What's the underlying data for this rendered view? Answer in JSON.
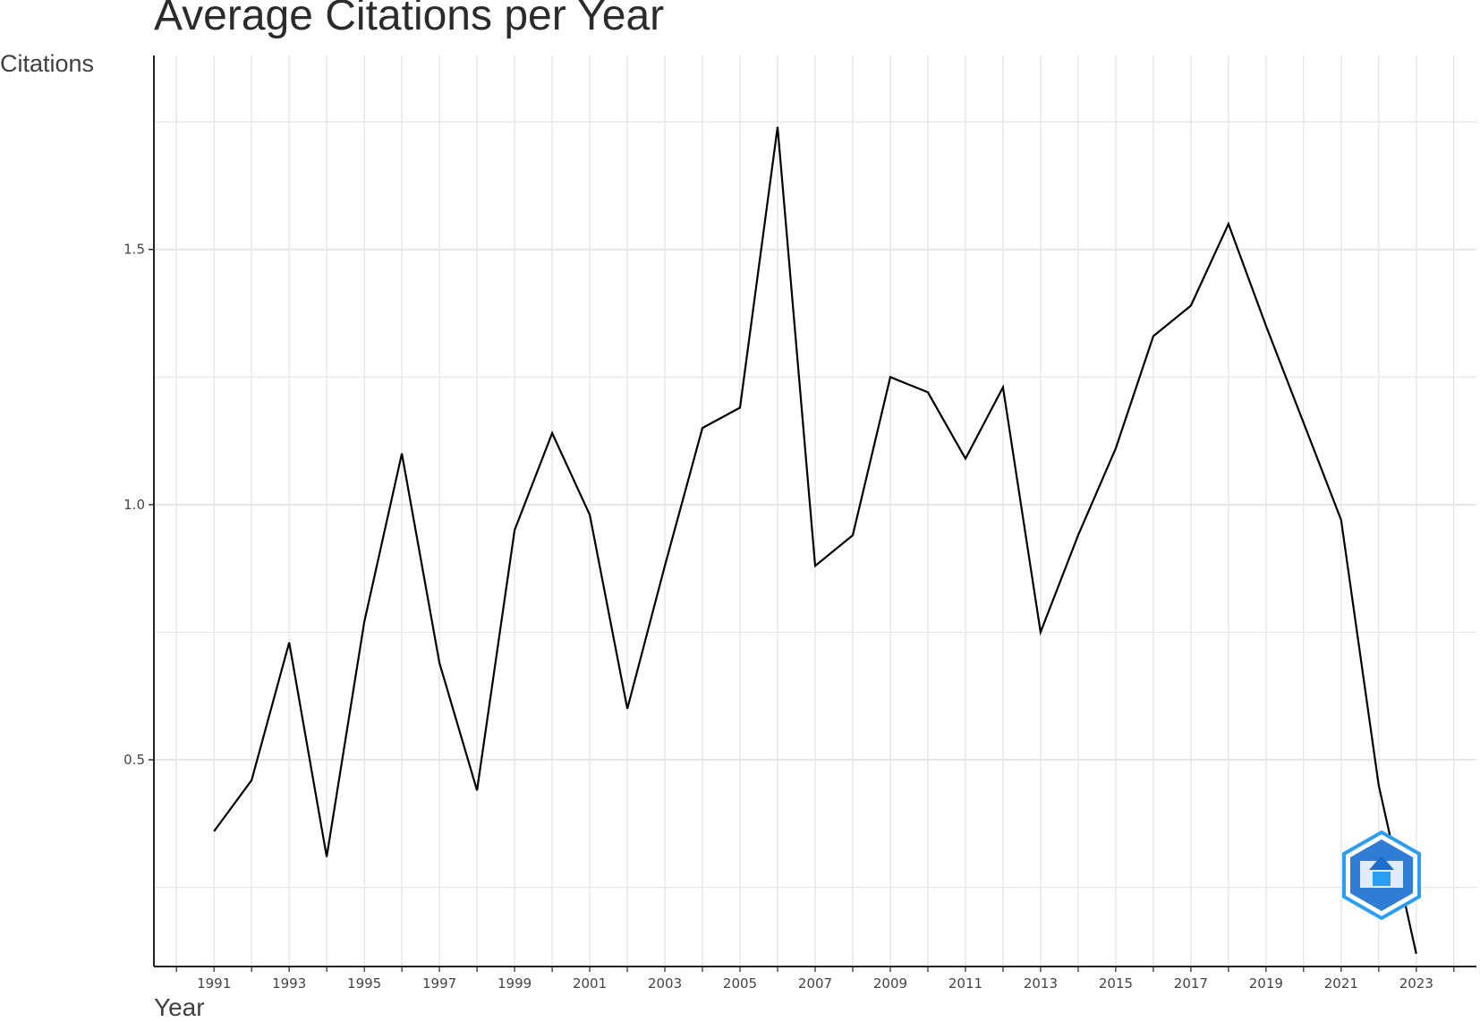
{
  "chart_data": {
    "type": "line",
    "title": "Average Citations per Year",
    "xlabel": "Year",
    "ylabel": "Citations",
    "x": [
      1991,
      1992,
      1993,
      1994,
      1995,
      1996,
      1997,
      1998,
      1999,
      2000,
      2001,
      2002,
      2003,
      2004,
      2005,
      2006,
      2007,
      2008,
      2009,
      2010,
      2011,
      2012,
      2013,
      2014,
      2015,
      2016,
      2017,
      2018,
      2019,
      2020,
      2021,
      2022,
      2023
    ],
    "series": [
      {
        "values": [
          0.36,
          0.46,
          0.73,
          0.31,
          0.77,
          1.1,
          0.69,
          0.44,
          0.95,
          1.14,
          0.98,
          0.6,
          0.88,
          1.15,
          1.19,
          1.74,
          0.88,
          0.94,
          1.25,
          1.22,
          1.09,
          1.23,
          0.75,
          0.94,
          1.11,
          1.33,
          1.39,
          1.55,
          1.35,
          1.16,
          0.97,
          0.45,
          0.12
        ]
      }
    ],
    "xticks": [
      "1991",
      "1993",
      "1995",
      "1997",
      "1999",
      "2001",
      "2003",
      "2005",
      "2007",
      "2009",
      "2011",
      "2013",
      "2015",
      "2017",
      "2019",
      "2021",
      "2023"
    ],
    "yticks": [
      "0.5",
      "1.0",
      "1.5"
    ],
    "xlim": [
      1989.4,
      2024.6
    ],
    "ylim": [
      0.095,
      1.88
    ],
    "grid": true,
    "line_color": "#000000",
    "grid_color": "#e6e6e6"
  },
  "watermark": {
    "icon": "hexagon-logo-icon",
    "colors": [
      "#1a6fd1",
      "#2a9df4"
    ]
  }
}
